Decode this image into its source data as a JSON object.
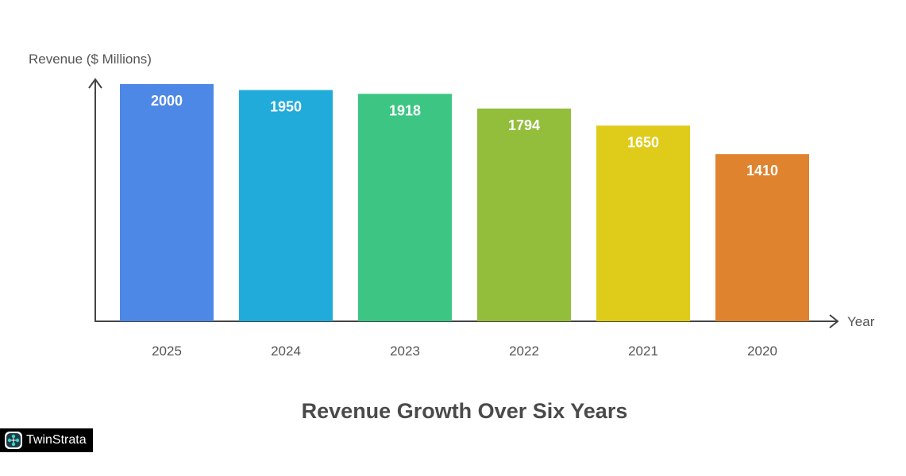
{
  "chart_data": {
    "type": "bar",
    "title": "Revenue Growth Over Six Years",
    "xlabel": "Year",
    "ylabel": "Revenue ($ Millions)",
    "categories": [
      "2025",
      "2024",
      "2023",
      "2022",
      "2021",
      "2020"
    ],
    "values": [
      2000,
      1950,
      1918,
      1794,
      1650,
      1410
    ],
    "colors": [
      "#4E88E6",
      "#20ABDB",
      "#3DC584",
      "#93BE3B",
      "#DFCC1A",
      "#E0832F"
    ],
    "ylim": [
      0,
      2000
    ],
    "grid": false,
    "legend": "none"
  },
  "logo": {
    "text": "TwinStrata",
    "icon": "network-nodes-icon"
  }
}
